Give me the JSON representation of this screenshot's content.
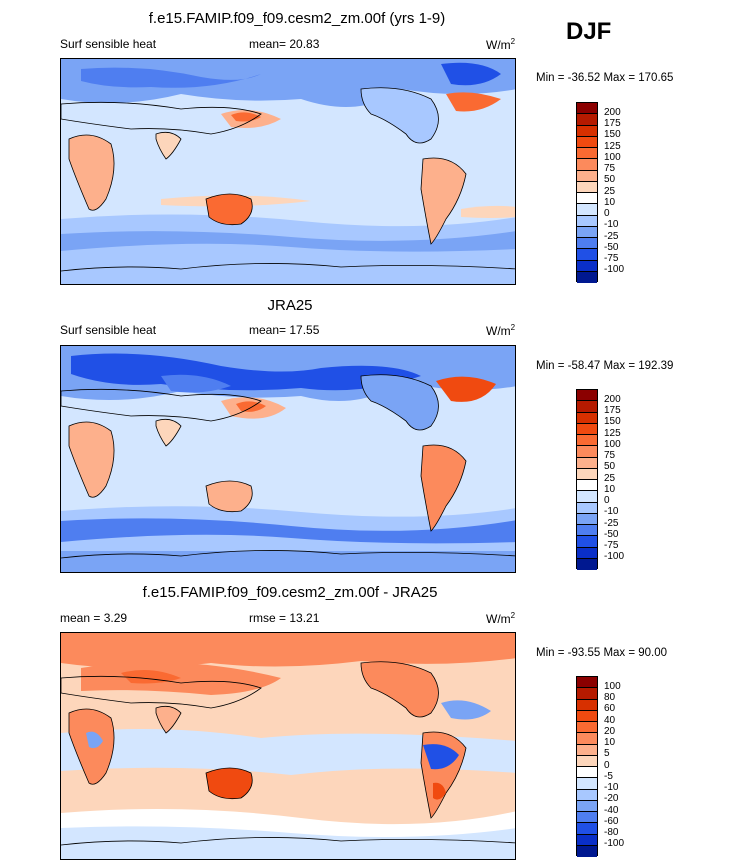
{
  "season": "DJF",
  "panels": [
    {
      "title": "f.e15.FAMIP.f09_f09.cesm2_zm.00f (yrs 1-9)",
      "left_label": "Surf sensible heat",
      "mean_label": "mean=  20.83",
      "unit_base": "W/m",
      "unit_sup": "2",
      "minmax": "Min = -36.52 Max = 170.65",
      "colorbar_ticks": [
        "200",
        "175",
        "150",
        "125",
        "100",
        "75",
        "50",
        "25",
        "10",
        "0",
        "-10",
        "-25",
        "-50",
        "-75",
        "-100"
      ]
    },
    {
      "title": "JRA25",
      "left_label": "Surf sensible heat",
      "mean_label": "mean=  17.55",
      "unit_base": "W/m",
      "unit_sup": "2",
      "minmax": "Min = -58.47 Max = 192.39",
      "colorbar_ticks": [
        "200",
        "175",
        "150",
        "125",
        "100",
        "75",
        "50",
        "25",
        "10",
        "0",
        "-10",
        "-25",
        "-50",
        "-75",
        "-100"
      ]
    },
    {
      "title": "f.e15.FAMIP.f09_f09.cesm2_zm.00f - JRA25",
      "left_label": "mean =   3.29",
      "mean_label": "rmse =  13.21",
      "unit_base": "W/m",
      "unit_sup": "2",
      "minmax": "Min = -93.55 Max =  90.00",
      "colorbar_ticks": [
        "100",
        "80",
        "60",
        "40",
        "20",
        "10",
        "5",
        "0",
        "-5",
        "-10",
        "-20",
        "-40",
        "-60",
        "-80",
        "-100"
      ]
    }
  ],
  "colors": {
    "colorbar": [
      "#8b0000",
      "#b51a00",
      "#d73000",
      "#f04a10",
      "#fa6a32",
      "#fc8a5c",
      "#fdb08c",
      "#fdd6bb",
      "#ffffff",
      "#d3e6ff",
      "#a8c8ff",
      "#7aa4f5",
      "#4f7ef0",
      "#2050e6",
      "#0a2fc8",
      "#001890"
    ]
  }
}
